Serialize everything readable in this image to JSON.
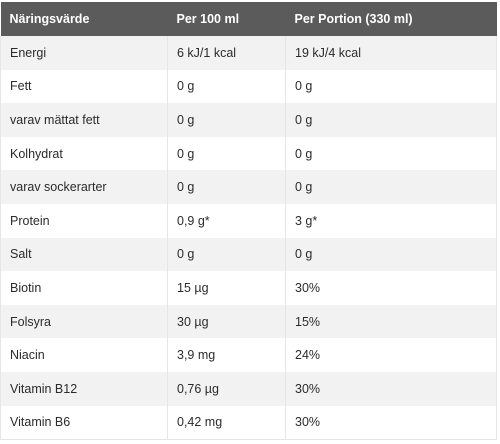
{
  "table": {
    "headers": [
      "Näringsvärde",
      "Per 100 ml",
      "Per Portion (330 ml)"
    ],
    "rows": [
      [
        "Energi",
        "6 kJ/1 kcal",
        "19 kJ/4 kcal"
      ],
      [
        "Fett",
        "0 g",
        "0 g"
      ],
      [
        "varav mättat fett",
        "0 g",
        "0 g"
      ],
      [
        "Kolhydrat",
        "0 g",
        "0 g"
      ],
      [
        "varav sockerarter",
        "0 g",
        "0 g"
      ],
      [
        "Protein",
        "0,9 g*",
        "3 g*"
      ],
      [
        "Salt",
        "0 g",
        "0 g"
      ],
      [
        "Biotin",
        "15 µg",
        "30%"
      ],
      [
        "Folsyra",
        "30 µg",
        "15%"
      ],
      [
        "Niacin",
        "3,9 mg",
        "24%"
      ],
      [
        "Vitamin B12",
        "0,76 µg",
        "30%"
      ],
      [
        "Vitamin B6",
        "0,42 mg",
        "30%"
      ]
    ]
  },
  "colors": {
    "header_background": "#5b5b5b",
    "header_text": "#ffffff",
    "stripe_background": "#f2f2f2",
    "body_text": "#2b2b2b"
  }
}
